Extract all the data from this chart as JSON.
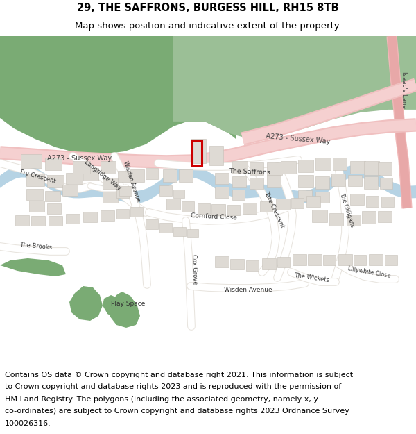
{
  "title_line1": "29, THE SAFFRONS, BURGESS HILL, RH15 8TB",
  "title_line2": "Map shows position and indicative extent of the property.",
  "footer_lines": [
    "Contains OS data © Crown copyright and database right 2021. This information is subject",
    "to Crown copyright and database rights 2023 and is reproduced with the permission of",
    "HM Land Registry. The polygons (including the associated geometry, namely x, y",
    "co-ordinates) are subject to Crown copyright and database rights 2023 Ordnance Survey",
    "100026316."
  ],
  "title_fontsize": 10.5,
  "subtitle_fontsize": 9.5,
  "footer_fontsize": 8.0,
  "bg_color": "#ffffff",
  "map_bg": "#f2efe9",
  "road_color_main": "#f0c8c8",
  "green_dark": "#7aab74",
  "green_medium": "#9bbf96",
  "green_light": "#b5d4a8",
  "water_color": "#aacce0",
  "building_color": "#dedad4",
  "building_stroke": "#c5c0b8",
  "highlight_color": "#cc0000",
  "road_label_color": "#333333"
}
